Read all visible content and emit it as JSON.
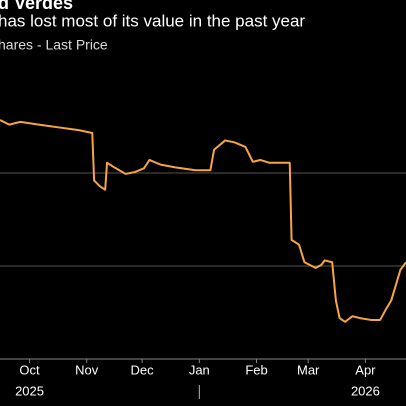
{
  "chart_data": {
    "type": "line",
    "title": "d Verdes",
    "subtitle": "has lost most of its value in the past year",
    "series_label": "hares - Last Price",
    "x": [
      -16,
      -11,
      -5,
      5,
      16,
      27,
      34,
      35,
      38,
      41,
      42,
      46,
      52,
      57,
      62,
      65,
      71,
      79,
      90,
      98,
      100,
      106,
      111,
      117,
      121,
      125,
      130,
      141,
      142,
      146,
      149,
      155,
      158,
      160,
      164,
      166,
      168,
      171,
      175,
      179,
      185,
      190,
      193,
      196,
      201,
      204
    ],
    "series": [
      {
        "name": "Last Price",
        "color": "#f7a543",
        "values": [
          2.57,
          2.52,
          2.55,
          2.52,
          2.49,
          2.46,
          2.43,
          1.92,
          1.86,
          1.82,
          2.11,
          2.06,
          1.99,
          2.01,
          2.05,
          2.14,
          2.09,
          2.06,
          2.03,
          2.03,
          2.25,
          2.35,
          2.33,
          2.28,
          2.12,
          2.14,
          2.11,
          2.11,
          1.28,
          1.23,
          1.04,
          0.98,
          1.01,
          1.06,
          1.04,
          0.63,
          0.44,
          0.4,
          0.46,
          0.44,
          0.42,
          0.42,
          0.53,
          0.63,
          0.96,
          1.04
        ]
      }
    ],
    "xlim": [
      -16,
      204
    ],
    "ylim": [
      0,
      3
    ],
    "gridlines": [
      1,
      2
    ],
    "xticks": [
      {
        "value": 0,
        "label": "Oct"
      },
      {
        "value": 31,
        "label": "Nov"
      },
      {
        "value": 61,
        "label": "Dec"
      },
      {
        "value": 92,
        "label": "Jan"
      },
      {
        "value": 123,
        "label": "Feb"
      },
      {
        "value": 151,
        "label": "Mar"
      },
      {
        "value": 182,
        "label": "Apr"
      }
    ],
    "year_labels": [
      {
        "value": 0,
        "label": "2025"
      },
      {
        "value": 182,
        "label": "2026"
      }
    ],
    "year_separators": [
      92
    ]
  }
}
